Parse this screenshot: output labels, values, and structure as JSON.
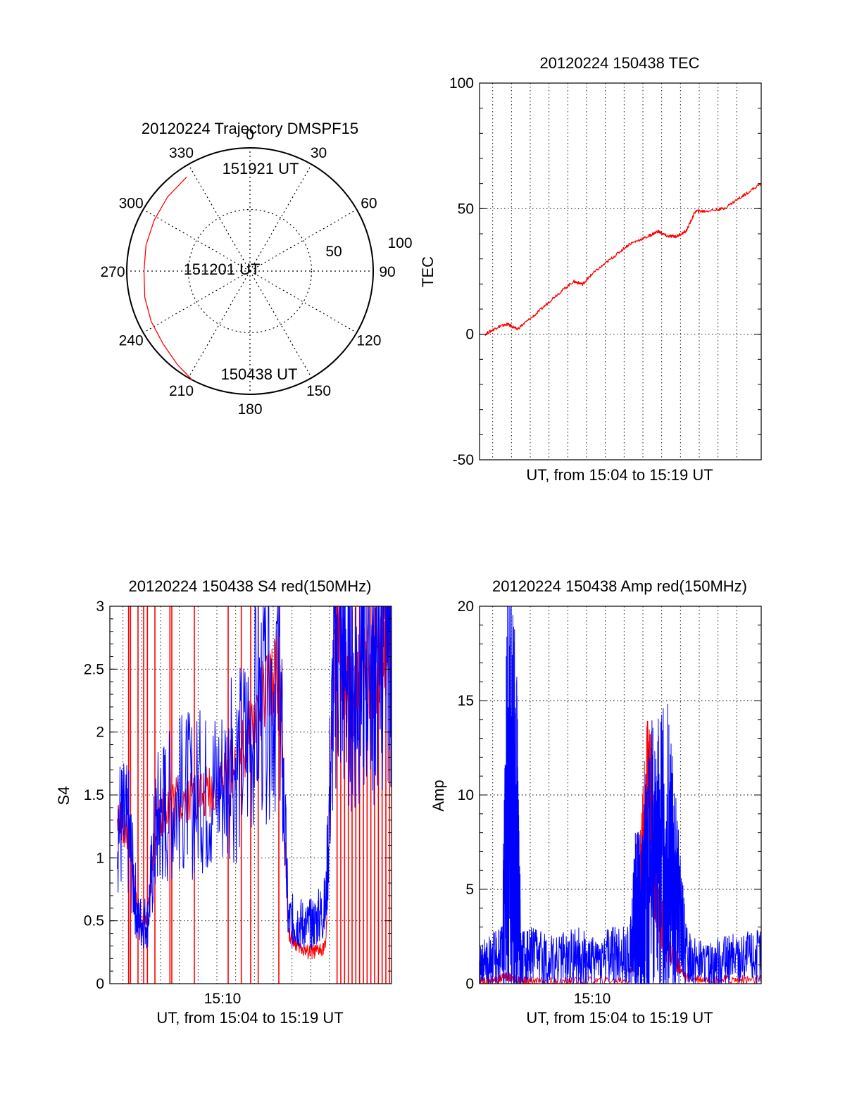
{
  "chart_data": [
    {
      "type": "polar",
      "title": "20120224 Trajectory DMSPF15",
      "angle_ticks": [
        "0",
        "30",
        "60",
        "90",
        "120",
        "150",
        "180",
        "210",
        "240",
        "270",
        "300",
        "330"
      ],
      "radial_ticks": [
        "50",
        "100"
      ],
      "radial_range": [
        0,
        100
      ],
      "grid": true,
      "colors": {
        "trajectory": "#ff0000"
      },
      "trajectory": {
        "azimuth": [
          208,
          218,
          230,
          243,
          256,
          270,
          284,
          298,
          312,
          326
        ],
        "radius": [
          100,
          96,
          92,
          90,
          88,
          86,
          87,
          88,
          90,
          92
        ]
      },
      "annotations": [
        {
          "text": "151921 UT",
          "azimuth": 335,
          "radius": 92
        },
        {
          "text": "151201 UT",
          "azimuth": 270,
          "radius": 45
        },
        {
          "text": "150438 UT",
          "azimuth": 208,
          "radius": 100
        }
      ]
    },
    {
      "type": "line",
      "title": "20120224 150438 TEC",
      "xlabel": "UT, from 15:04 to 15:19 UT",
      "ylabel": "TEC",
      "xlim": [
        0,
        15
      ],
      "ylim": [
        -50,
        100
      ],
      "yticks": [
        "-50",
        "0",
        "50",
        "100"
      ],
      "xtick_labels": [],
      "grid": true,
      "series": [
        {
          "color": "#ff0000",
          "x": [
            0.3,
            1.0,
            1.5,
            2.0,
            3.0,
            4.0,
            5.0,
            5.5,
            6.0,
            7.0,
            8.0,
            9.0,
            9.5,
            10.0,
            10.5,
            11.0,
            11.5,
            12.0,
            13.0,
            14.0,
            15.0
          ],
          "y": [
            0,
            3,
            4,
            2,
            8,
            15,
            21,
            20,
            24,
            30,
            36,
            39,
            41,
            39,
            39,
            41,
            49,
            49,
            50,
            55,
            60
          ]
        }
      ]
    },
    {
      "type": "line",
      "title": "20120224 150438 S4 red(150MHz)",
      "xlabel": "UT, from 15:04 to 15:19 UT",
      "ylabel": "S4",
      "xlim": [
        0,
        15
      ],
      "ylim": [
        0,
        3
      ],
      "yticks": [
        "0",
        "0.5",
        "1",
        "1.5",
        "2",
        "2.5",
        "3"
      ],
      "xtick_labels": [
        {
          "x": 6,
          "label": "15:10"
        }
      ],
      "grid": true,
      "series": [
        {
          "color": "#ff0000",
          "x": [
            0.4,
            1.0,
            1.5,
            2.0,
            2.5,
            3.0,
            4.0,
            5.0,
            6.0,
            7.0,
            8.0,
            9.0,
            9.5,
            10.0,
            10.5,
            11.0,
            11.5,
            12.0,
            12.5,
            13.0,
            13.5,
            14.0,
            14.5,
            15.0
          ],
          "y": [
            1.3,
            1.2,
            0.5,
            0.5,
            1.3,
            1.4,
            1.5,
            1.5,
            1.6,
            1.8,
            2.2,
            2.5,
            0.4,
            0.3,
            0.25,
            0.25,
            0.3,
            2.8,
            2.5,
            2.2,
            2.6,
            2.4,
            2.7,
            2.5
          ]
        },
        {
          "color": "#0000ff",
          "x": [
            0.4,
            1.0,
            1.5,
            2.0,
            2.5,
            3.0,
            4.0,
            5.0,
            6.0,
            7.0,
            8.0,
            9.0,
            9.5,
            10.0,
            10.5,
            11.0,
            11.5,
            12.0,
            12.5,
            13.0,
            13.5,
            14.0,
            14.5,
            15.0
          ],
          "y": [
            1.3,
            1.2,
            0.5,
            0.5,
            1.3,
            1.4,
            1.5,
            1.5,
            1.6,
            1.8,
            2.2,
            2.5,
            0.5,
            0.5,
            0.45,
            0.5,
            0.6,
            2.8,
            2.6,
            2.4,
            2.7,
            2.5,
            2.8,
            2.6
          ]
        }
      ],
      "spikes": {
        "color": "#ff0000",
        "x": [
          1.0,
          1.1,
          1.5,
          1.8,
          2.0,
          2.4,
          3.2,
          3.3,
          4.5,
          6.3,
          7.0,
          7.5,
          7.9,
          9.0,
          12.1,
          12.3,
          12.5,
          12.7,
          12.9,
          13.1,
          13.3,
          13.5,
          13.7,
          13.9,
          14.1,
          14.3,
          14.5,
          14.7,
          14.9
        ]
      }
    },
    {
      "type": "line",
      "title": "20120224 150438 Amp red(150MHz)",
      "xlabel": "UT, from 15:04 to 15:19 UT",
      "ylabel": "Amp",
      "xlim": [
        0,
        15
      ],
      "ylim": [
        0,
        20
      ],
      "yticks": [
        "0",
        "5",
        "10",
        "15",
        "20"
      ],
      "xtick_labels": [
        {
          "x": 6,
          "label": "15:10"
        }
      ],
      "grid": true,
      "series": [
        {
          "color": "#ff0000",
          "x": [
            0.0,
            1.0,
            1.5,
            2.0,
            3.0,
            5.0,
            8.0,
            8.5,
            9.0,
            9.5,
            10.0,
            11.0,
            13.0,
            15.0
          ],
          "y": [
            0.1,
            0.2,
            0.4,
            0.2,
            0.1,
            0.1,
            0.2,
            5.0,
            10.2,
            4.0,
            2.0,
            0.3,
            0.2,
            0.2
          ]
        },
        {
          "color": "#0000ff",
          "x": [
            0.0,
            0.5,
            1.2,
            1.5,
            1.8,
            2.0,
            2.2,
            3.0,
            4.0,
            5.0,
            6.0,
            7.0,
            8.0,
            8.3,
            8.6,
            9.0,
            9.5,
            10.0,
            10.5,
            11.0,
            12.0,
            13.0,
            14.0,
            15.0
          ],
          "y": [
            1.0,
            1.2,
            1.5,
            11.0,
            9.5,
            8.0,
            1.5,
            1.4,
            1.2,
            1.5,
            1.2,
            1.5,
            1.5,
            3.8,
            4.0,
            6.5,
            7.0,
            7.2,
            4.5,
            1.5,
            1.0,
            1.2,
            1.3,
            1.4
          ]
        }
      ]
    }
  ]
}
